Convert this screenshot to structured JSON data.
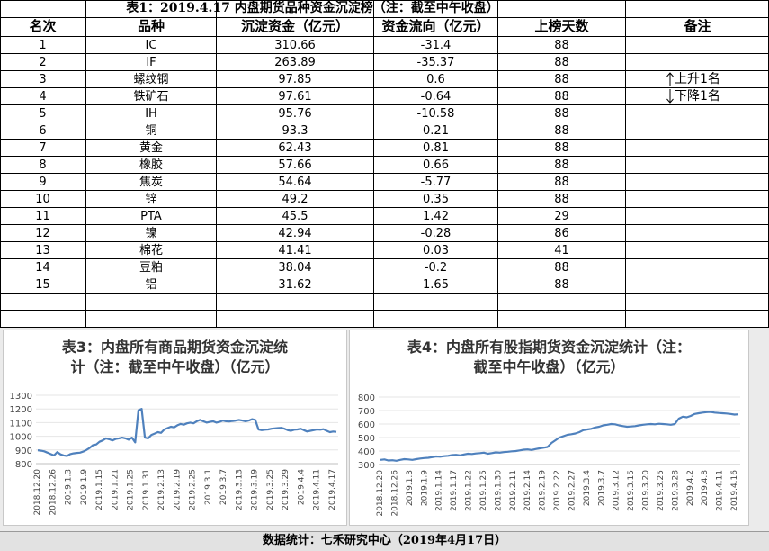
{
  "title": "表1：2019.4.17 内盘期货品种资金沉淀榜（注：截至中午收盘）",
  "headers": [
    "名次",
    "品种",
    "沉淀资金（亿元）",
    "资金流向（亿元）",
    "上榜天数",
    "备注"
  ],
  "rows": [
    {
      "rank": "1",
      "name": "IC",
      "funds": "310.66",
      "flow": "-31.4",
      "days": "88"
    },
    {
      "rank": "2",
      "name": "IF",
      "funds": "263.89",
      "flow": "-35.37",
      "days": "88"
    },
    {
      "rank": "3",
      "name": "螺纹钢",
      "funds": "97.85",
      "flow": "0.6",
      "days": "88"
    },
    {
      "rank": "4",
      "name": "铁矿石",
      "funds": "97.61",
      "flow": "-0.64",
      "days": "88"
    },
    {
      "rank": "5",
      "name": "IH",
      "funds": "95.76",
      "flow": "-10.58",
      "days": "88"
    },
    {
      "rank": "6",
      "name": "铜",
      "funds": "93.3",
      "flow": "0.21",
      "days": "88"
    },
    {
      "rank": "7",
      "name": "黄金",
      "funds": "62.43",
      "flow": "0.81",
      "days": "88"
    },
    {
      "rank": "8",
      "name": "橡胶",
      "funds": "57.66",
      "flow": "0.66",
      "days": "88"
    },
    {
      "rank": "9",
      "name": "焦炭",
      "funds": "54.64",
      "flow": "-5.77",
      "days": "88"
    },
    {
      "rank": "10",
      "name": "锌",
      "funds": "49.2",
      "flow": "0.35",
      "days": "88"
    },
    {
      "rank": "11",
      "name": "PTA",
      "funds": "45.5",
      "flow": "1.42",
      "days": "29"
    },
    {
      "rank": "12",
      "name": "镍",
      "funds": "42.94",
      "flow": "-0.28",
      "days": "86"
    },
    {
      "rank": "13",
      "name": "棉花",
      "funds": "41.41",
      "flow": "0.03",
      "days": "41"
    },
    {
      "rank": "14",
      "name": "豆粕",
      "funds": "38.04",
      "flow": "-0.2",
      "days": "88"
    },
    {
      "rank": "15",
      "name": "铝",
      "funds": "31.62",
      "flow": "1.65",
      "days": "88"
    }
  ],
  "notes": {
    "up_icon": "arrow-up",
    "up_text": "上升1名",
    "down_icon": "arrow-down",
    "down_text": "下降1名"
  },
  "footer": "数据统计：七禾研究中心（2019年4月17日）",
  "line_color": "#4f81bd",
  "chart_data": [
    {
      "type": "line",
      "title": "表3：内盘所有商品期货资金沉淀统计（注：截至中午收盘）（亿元）",
      "title_lines": [
        "表3：内盘所有商品期货资金沉淀统",
        "计（注：截至中午收盘）（亿元）"
      ],
      "ylim": [
        800,
        1300
      ],
      "yticks": [
        800,
        900,
        1000,
        1100,
        1200,
        1300
      ],
      "xticks": [
        "2018.12.20",
        "2018.12.26",
        "2019.1.3",
        "2019.1.9",
        "2019.1.15",
        "2019.1.21",
        "2019.1.25",
        "2019.1.31",
        "2019.2.13",
        "2019.2.19",
        "2019.2.25",
        "2019.3.1",
        "2019.3.7",
        "2019.3.13",
        "2019.3.19",
        "2019.3.25",
        "2019.3.29",
        "2019.4.4",
        "2019.4.11",
        "2019.4.17"
      ],
      "values": [
        898,
        895,
        890,
        880,
        870,
        860,
        885,
        868,
        860,
        856,
        870,
        875,
        878,
        880,
        888,
        900,
        915,
        935,
        940,
        960,
        970,
        985,
        978,
        970,
        980,
        985,
        990,
        985,
        975,
        990,
        955,
        1190,
        1200,
        990,
        985,
        1010,
        1020,
        1030,
        1025,
        1050,
        1060,
        1070,
        1065,
        1080,
        1090,
        1085,
        1095,
        1100,
        1095,
        1110,
        1120,
        1110,
        1100,
        1105,
        1110,
        1100,
        1105,
        1115,
        1110,
        1108,
        1112,
        1115,
        1120,
        1115,
        1110,
        1115,
        1125,
        1120,
        1050,
        1045,
        1048,
        1050,
        1055,
        1058,
        1060,
        1062,
        1055,
        1045,
        1040,
        1048,
        1050,
        1055,
        1045,
        1035,
        1040,
        1045,
        1050,
        1048,
        1052,
        1040,
        1030,
        1035,
        1032
      ]
    },
    {
      "type": "line",
      "title": "表4：内盘所有股指期货资金沉淀统计（注：截至中午收盘）（亿元）",
      "title_lines": [
        "表4：内盘所有股指期货资金沉淀统计（注：",
        "截至中午收盘）（亿元）"
      ],
      "ylim": [
        300,
        800
      ],
      "yticks": [
        300,
        400,
        500,
        600,
        700,
        800
      ],
      "xticks": [
        "2018.12.20",
        "2018.12.26",
        "2019.1.3",
        "2019.1.9",
        "2019.1.14",
        "2019.1.17",
        "2019.1.22",
        "2019.1.25",
        "2019.1.30",
        "2019.2.11",
        "2019.2.14",
        "2019.2.19",
        "2019.2.22",
        "2019.2.27",
        "2019.3.4",
        "2019.3.7",
        "2019.3.12",
        "2019.3.15",
        "2019.3.20",
        "2019.3.25",
        "2019.3.28",
        "2019.4.2",
        "2019.4.8",
        "2019.4.11",
        "2019.4.16"
      ],
      "values": [
        335,
        338,
        330,
        332,
        328,
        335,
        340,
        338,
        335,
        340,
        345,
        348,
        350,
        355,
        360,
        358,
        362,
        365,
        370,
        372,
        368,
        375,
        380,
        378,
        382,
        385,
        388,
        380,
        385,
        390,
        388,
        392,
        395,
        398,
        400,
        405,
        410,
        412,
        408,
        415,
        420,
        425,
        430,
        460,
        480,
        500,
        510,
        520,
        525,
        530,
        540,
        555,
        560,
        565,
        575,
        580,
        590,
        595,
        600,
        598,
        590,
        585,
        580,
        582,
        585,
        590,
        595,
        598,
        600,
        598,
        602,
        600,
        598,
        595,
        600,
        640,
        655,
        650,
        660,
        675,
        680,
        685,
        688,
        690,
        685,
        682,
        680,
        678,
        675,
        670,
        672
      ]
    }
  ]
}
